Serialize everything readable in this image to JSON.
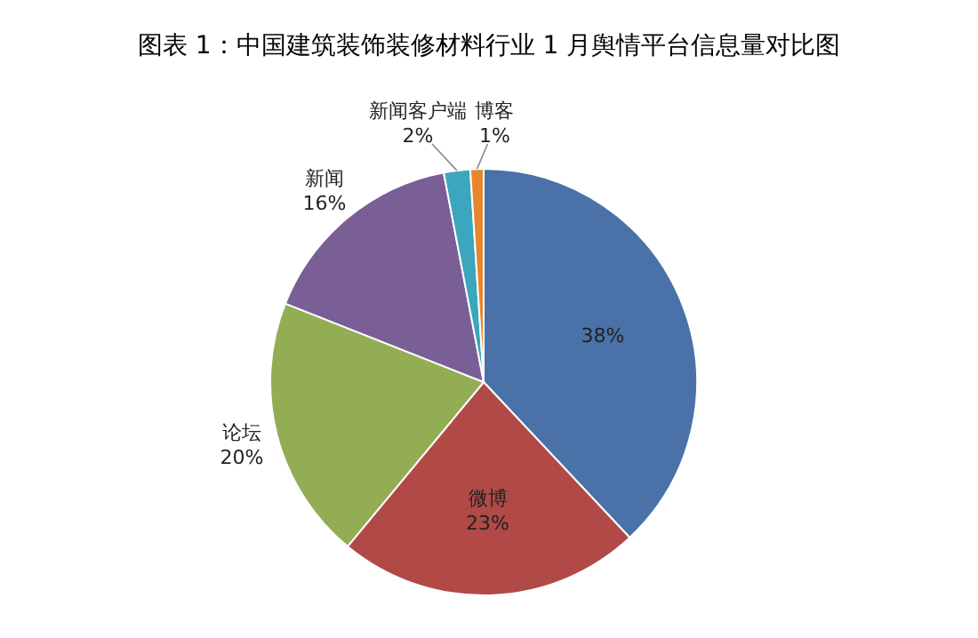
{
  "chart_data": {
    "type": "pie",
    "title": "图表 1：中国建筑装饰装修材料行业 1 月舆情平台信息量对比图",
    "categories": [
      null,
      "微博",
      "论坛",
      "新闻",
      "新闻客户端",
      "博客"
    ],
    "values": [
      38,
      23,
      20,
      16,
      2,
      1
    ],
    "value_labels": [
      "38%",
      "23%",
      "20%",
      "16%",
      "2%",
      "1%"
    ],
    "colors": [
      "#4a72a8",
      "#b14a47",
      "#93ad55",
      "#7a5f96",
      "#3ba6bd",
      "#e8862f"
    ]
  }
}
